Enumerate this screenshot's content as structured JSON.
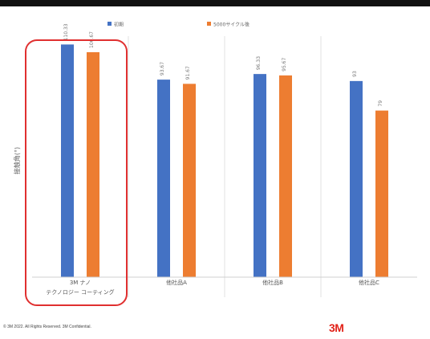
{
  "chart_data": {
    "type": "bar",
    "title": "",
    "xlabel": "",
    "ylabel": "接触角(°)",
    "categories": [
      "3M ナノ テクノロジー コーティング",
      "他社品A",
      "他社品B",
      "他社品C"
    ],
    "series": [
      {
        "name": "初期",
        "color": "#4472c4",
        "values": [
          110.33,
          93.67,
          96.33,
          93
        ]
      },
      {
        "name": "5000サイクル後",
        "color": "#ed7d31",
        "values": [
          106.67,
          91.67,
          95.67,
          79
        ]
      }
    ],
    "data_labels": [
      [
        "110.33",
        "106.67"
      ],
      [
        "93.67",
        "91.67"
      ],
      [
        "96.33",
        "95.67"
      ],
      [
        "93",
        "79"
      ]
    ],
    "ylim": [
      0,
      120
    ],
    "grid": false,
    "legend_position": "top",
    "highlight_category": 0,
    "highlight_color": "#e03030"
  },
  "footer": {
    "copyright": "© 3M 2022. All Rights Reserved. 3M Confidential.",
    "brand": "3M"
  }
}
